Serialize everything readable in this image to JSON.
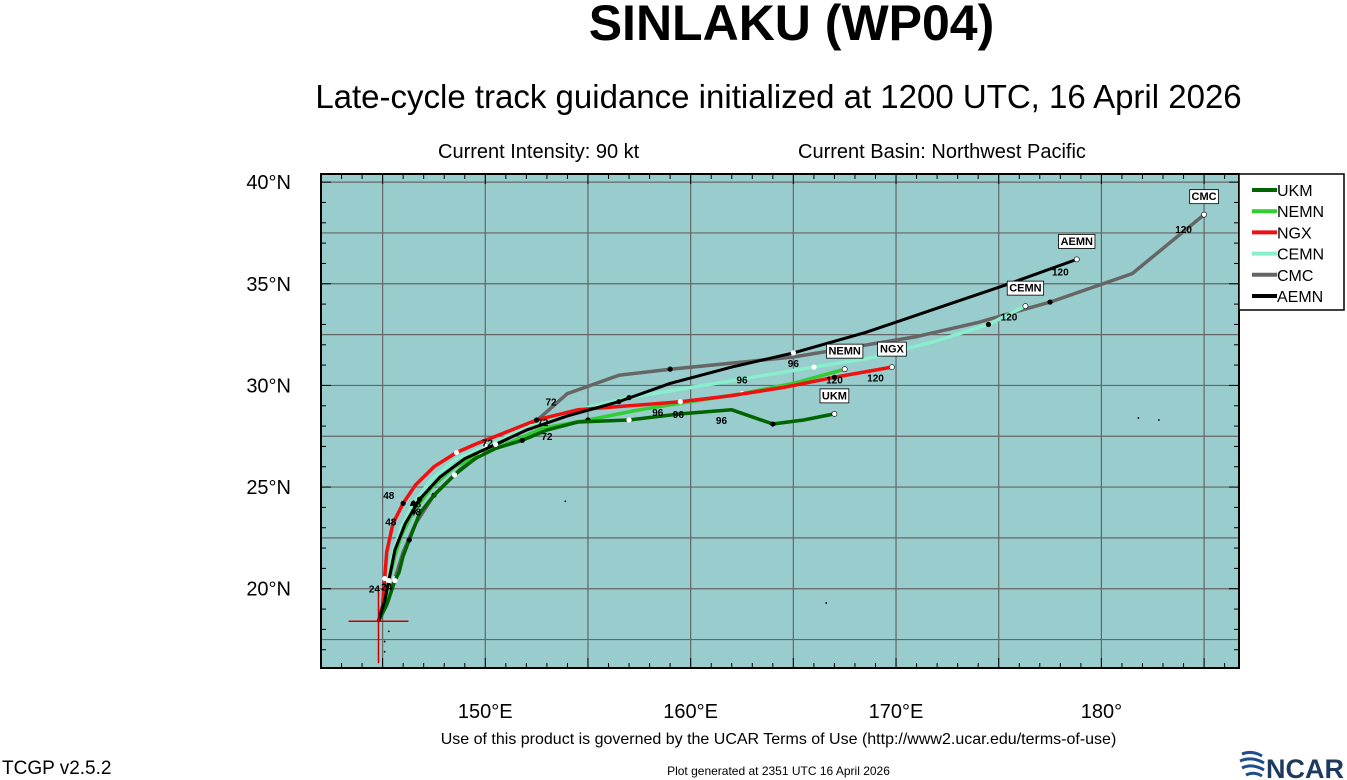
{
  "title": "SINLAKU (WP04)",
  "subtitle": "Late-cycle track guidance initialized at 1200 UTC, 16 April 2026",
  "info": {
    "intensity": "Current Intensity: 90 kt",
    "basin": "Current Basin: Northwest Pacific"
  },
  "footer": {
    "terms": "Use of this product is governed by the UCAR Terms of Use (http://www2.ucar.edu/terms-of-use)",
    "generated": "Plot generated at 2351 UTC   16 April 2026",
    "version": "TCGP v2.5.2",
    "logo_text": "NCAR"
  },
  "colors": {
    "ocean": "#99cccc",
    "grid": "#666666",
    "UKM": "#006400",
    "NEMN": "#33cc33",
    "NGX": "#ee1111",
    "CEMN": "#88eecc",
    "CMC": "#666666",
    "AEMN": "#000000"
  },
  "chart_data": {
    "type": "line",
    "xlim": [
      142.0,
      186.7
    ],
    "ylim": [
      16.1,
      40.4
    ],
    "x_ticks": [
      150,
      160,
      170,
      180
    ],
    "x_tick_labels": [
      "150°E",
      "160°E",
      "170°E",
      "180°"
    ],
    "y_ticks": [
      20,
      25,
      30,
      35,
      40
    ],
    "y_tick_labels": [
      "20°N",
      "25°N",
      "30°N",
      "35°N",
      "40°N"
    ],
    "grid": true,
    "legend_position": "right",
    "current_position": [
      144.8,
      18.4
    ],
    "series": [
      {
        "name": "UKM",
        "points": [
          [
            144.8,
            18.4
          ],
          [
            145.2,
            19.2
          ],
          [
            145.6,
            20.4
          ],
          [
            145.8,
            20.8
          ],
          [
            146.0,
            21.6
          ],
          [
            146.3,
            22.4
          ],
          [
            146.8,
            23.7
          ],
          [
            147.5,
            24.6
          ],
          [
            148.5,
            25.6
          ],
          [
            149.5,
            26.4
          ],
          [
            150.5,
            26.9
          ],
          [
            151.8,
            27.3
          ],
          [
            153.0,
            27.8
          ],
          [
            154.5,
            28.2
          ],
          [
            157.0,
            28.3
          ],
          [
            159.5,
            28.6
          ],
          [
            162.0,
            28.8
          ],
          [
            164.0,
            28.1
          ],
          [
            165.5,
            28.3
          ],
          [
            167.0,
            28.6
          ]
        ],
        "end_label": "UKM",
        "end_label_pos": [
          167.0,
          28.6
        ],
        "tau_labels": [
          [
            "72",
            153.0,
            27.5
          ],
          [
            "96",
            161.5,
            28.3
          ]
        ]
      },
      {
        "name": "NEMN",
        "points": [
          [
            144.8,
            18.4
          ],
          [
            145.1,
            19.3
          ],
          [
            145.3,
            20.4
          ],
          [
            145.6,
            21.6
          ],
          [
            145.9,
            22.6
          ],
          [
            146.5,
            23.8
          ],
          [
            147.4,
            25.0
          ],
          [
            148.5,
            26.0
          ],
          [
            149.8,
            26.6
          ],
          [
            151.2,
            27.2
          ],
          [
            152.8,
            27.9
          ],
          [
            155.0,
            28.3
          ],
          [
            157.5,
            28.8
          ],
          [
            160.0,
            29.2
          ],
          [
            162.5,
            29.6
          ],
          [
            165.0,
            30.1
          ],
          [
            167.5,
            30.8
          ]
        ],
        "end_label": "NEMN",
        "end_label_pos": [
          167.5,
          30.8
        ],
        "tau_labels": [
          [
            "96",
            158.4,
            28.7
          ],
          [
            "120",
            167.0,
            30.3
          ]
        ]
      },
      {
        "name": "NGX",
        "points": [
          [
            144.8,
            18.4
          ],
          [
            145.0,
            19.2
          ],
          [
            145.1,
            20.5
          ],
          [
            145.2,
            21.8
          ],
          [
            145.5,
            23.2
          ],
          [
            146.0,
            24.2
          ],
          [
            146.6,
            25.1
          ],
          [
            147.5,
            26.0
          ],
          [
            148.6,
            26.7
          ],
          [
            149.5,
            27.1
          ],
          [
            151.0,
            27.7
          ],
          [
            152.5,
            28.3
          ],
          [
            154.5,
            28.8
          ],
          [
            157.0,
            29.0
          ],
          [
            159.5,
            29.2
          ],
          [
            162.0,
            29.5
          ],
          [
            164.5,
            29.9
          ],
          [
            167.0,
            30.4
          ],
          [
            169.8,
            30.9
          ]
        ],
        "end_label": "NGX",
        "end_label_pos": [
          169.8,
          30.9
        ],
        "tau_labels": [
          [
            "48",
            145.4,
            23.3
          ],
          [
            "72",
            150.1,
            27.2
          ],
          [
            "96",
            159.4,
            28.6
          ],
          [
            "120",
            169.0,
            30.4
          ]
        ]
      },
      {
        "name": "CEMN",
        "points": [
          [
            144.8,
            18.4
          ],
          [
            145.0,
            19.3
          ],
          [
            145.2,
            20.4
          ],
          [
            145.5,
            21.8
          ],
          [
            145.9,
            23.0
          ],
          [
            146.5,
            24.2
          ],
          [
            147.4,
            25.4
          ],
          [
            148.6,
            26.4
          ],
          [
            150.0,
            27.0
          ],
          [
            152.0,
            27.9
          ],
          [
            154.5,
            28.8
          ],
          [
            157.0,
            29.4
          ],
          [
            160.0,
            29.9
          ],
          [
            163.0,
            30.4
          ],
          [
            166.0,
            30.9
          ],
          [
            169.0,
            31.4
          ],
          [
            172.0,
            32.2
          ],
          [
            174.5,
            33.0
          ],
          [
            176.3,
            33.9
          ]
        ],
        "end_label": "CEMN",
        "end_label_pos": [
          176.3,
          33.9
        ],
        "tau_labels": [
          [
            "72",
            152.8,
            28.2
          ],
          [
            "120",
            175.5,
            33.4
          ]
        ]
      },
      {
        "name": "CMC",
        "points": [
          [
            144.8,
            18.4
          ],
          [
            145.3,
            19.5
          ],
          [
            145.6,
            20.5
          ],
          [
            146.0,
            21.8
          ],
          [
            146.6,
            23.2
          ],
          [
            147.5,
            24.6
          ],
          [
            148.8,
            25.9
          ],
          [
            150.4,
            27.0
          ],
          [
            152.2,
            28.0
          ],
          [
            154.0,
            29.6
          ],
          [
            156.5,
            30.5
          ],
          [
            159.0,
            30.8
          ],
          [
            162.0,
            31.1
          ],
          [
            165.0,
            31.4
          ],
          [
            168.0,
            31.9
          ],
          [
            171.0,
            32.4
          ],
          [
            174.0,
            33.1
          ],
          [
            177.5,
            34.1
          ],
          [
            181.5,
            35.5
          ],
          [
            185.0,
            38.4
          ]
        ],
        "end_label": "CMC",
        "end_label_pos": [
          185.0,
          38.4
        ],
        "tau_labels": [
          [
            "72",
            153.2,
            29.2
          ],
          [
            "96",
            165.0,
            31.1
          ],
          [
            "120",
            184.0,
            37.7
          ]
        ]
      },
      {
        "name": "AEMN",
        "points": [
          [
            144.8,
            18.4
          ],
          [
            145.1,
            19.4
          ],
          [
            145.3,
            20.4
          ],
          [
            145.6,
            21.9
          ],
          [
            146.1,
            23.2
          ],
          [
            146.8,
            24.4
          ],
          [
            147.8,
            25.5
          ],
          [
            149.0,
            26.4
          ],
          [
            150.5,
            27.1
          ],
          [
            152.0,
            27.8
          ],
          [
            154.0,
            28.5
          ],
          [
            156.5,
            29.2
          ],
          [
            159.0,
            30.1
          ],
          [
            162.0,
            30.9
          ],
          [
            165.0,
            31.6
          ],
          [
            168.5,
            32.6
          ],
          [
            172.0,
            33.8
          ],
          [
            175.5,
            35.0
          ],
          [
            178.8,
            36.2
          ]
        ],
        "end_label": "AEMN",
        "end_label_pos": [
          178.8,
          36.2
        ],
        "tau_labels": [
          [
            "96",
            162.5,
            30.3
          ],
          [
            "120",
            178.0,
            35.6
          ]
        ]
      }
    ],
    "extra_tau_labels": [
      [
        "48",
        145.3,
        24.6
      ],
      [
        "48",
        146.6,
        24.2
      ],
      [
        "48",
        146.6,
        23.8
      ],
      [
        "24",
        144.6,
        20.0
      ],
      [
        "24",
        145.2,
        20.1
      ]
    ]
  }
}
